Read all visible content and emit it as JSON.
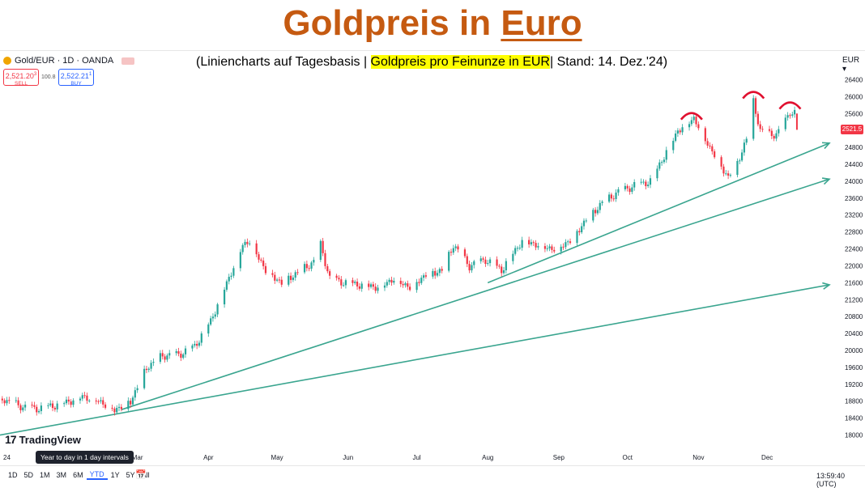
{
  "header": {
    "title_prefix": "Goldpreis in",
    "title_em": "Euro"
  },
  "subtitle": {
    "before": "(Liniencharts auf Tagesbasis |",
    "highlight": "Goldpreis pro Feinunze in EUR",
    "after": "| Stand: 14. Dez.'24)"
  },
  "symbol": {
    "label": "Gold/EUR · 1D · OANDA",
    "icon": "gold-coin-icon"
  },
  "trade": {
    "sell_price": "2,521.20",
    "sell_sup": "3",
    "sell_label": "SELL",
    "spread": "100.8",
    "buy_price": "2,522.21",
    "buy_sup": "1",
    "buy_label": "BUY"
  },
  "currency": "EUR",
  "last_price": "2521.5",
  "branding": {
    "logo_mark": "17",
    "logo_text": "TradingView"
  },
  "tooltip": "Year to day in 1 day intervals",
  "ranges": [
    "1D",
    "5D",
    "1M",
    "3M",
    "6M",
    "YTD",
    "1Y",
    "5Y",
    "All"
  ],
  "active_range": "YTD",
  "calendar_icon": "calendar-icon",
  "time": "13:59:40 (UTC)",
  "colors": {
    "up": "#26a69a",
    "down": "#f23645",
    "trend": "#3aa58f",
    "arc": "#e0102f",
    "title": "#c55a11",
    "highlight": "#ffff00"
  },
  "chart_data": {
    "type": "line",
    "title": "Goldpreis in Euro",
    "subtitle": "(Liniencharts auf Tagesbasis | Goldpreis pro Feinunze in EUR| Stand: 14. Dez.'24)",
    "xlabel": "",
    "ylabel": "",
    "yticks": [
      18000,
      18400,
      18800,
      19200,
      19600,
      20000,
      20400,
      20800,
      21200,
      21600,
      22000,
      22400,
      22800,
      23200,
      23600,
      24000,
      24400,
      24800,
      25200,
      25600,
      26000,
      26400
    ],
    "ytick_labels": [
      "18000",
      "18400",
      "18800",
      "19200",
      "19600",
      "20000",
      "20400",
      "20800",
      "21200",
      "21600",
      "22000",
      "22400",
      "22800",
      "23200",
      "23600",
      "24000",
      "24400",
      "24800",
      "25200",
      "25600",
      "26000",
      "26400"
    ],
    "ylim": [
      17800,
      26600
    ],
    "xticks": [
      {
        "date": "2024-01-01",
        "label": "24"
      },
      {
        "date": "2024-03-01",
        "label": "Mar"
      },
      {
        "date": "2024-04-01",
        "label": "Apr"
      },
      {
        "date": "2024-05-01",
        "label": "May"
      },
      {
        "date": "2024-06-01",
        "label": "Jun"
      },
      {
        "date": "2024-07-01",
        "label": "Jul"
      },
      {
        "date": "2024-08-01",
        "label": "Aug"
      },
      {
        "date": "2024-09-01",
        "label": "Sep"
      },
      {
        "date": "2024-10-01",
        "label": "Oct"
      },
      {
        "date": "2024-11-01",
        "label": "Nov"
      },
      {
        "date": "2024-12-01",
        "label": "Dec"
      }
    ],
    "xlim": [
      "2024-01-01",
      "2024-12-31"
    ],
    "series": [
      {
        "points": [
          [
            "2024-01-02",
            18860
          ],
          [
            "2024-01-09",
            18700
          ],
          [
            "2024-01-16",
            18620
          ],
          [
            "2024-01-23",
            18680
          ],
          [
            "2024-01-30",
            18780
          ],
          [
            "2024-02-06",
            18920
          ],
          [
            "2024-02-13",
            18820
          ],
          [
            "2024-02-20",
            18600
          ],
          [
            "2024-02-27",
            18800
          ],
          [
            "2024-03-05",
            19600
          ],
          [
            "2024-03-12",
            19880
          ],
          [
            "2024-03-19",
            19900
          ],
          [
            "2024-03-26",
            20100
          ],
          [
            "2024-04-02",
            20700
          ],
          [
            "2024-04-09",
            21600
          ],
          [
            "2024-04-16",
            22500
          ],
          [
            "2024-04-19",
            22600
          ],
          [
            "2024-04-26",
            21900
          ],
          [
            "2024-05-03",
            21600
          ],
          [
            "2024-05-10",
            21850
          ],
          [
            "2024-05-17",
            22100
          ],
          [
            "2024-05-20",
            22500
          ],
          [
            "2024-05-24",
            21700
          ],
          [
            "2024-05-31",
            21600
          ],
          [
            "2024-06-07",
            21550
          ],
          [
            "2024-06-14",
            21500
          ],
          [
            "2024-06-21",
            21700
          ],
          [
            "2024-06-28",
            21500
          ],
          [
            "2024-07-05",
            21800
          ],
          [
            "2024-07-12",
            21900
          ],
          [
            "2024-07-17",
            22500
          ],
          [
            "2024-07-24",
            22000
          ],
          [
            "2024-07-31",
            22150
          ],
          [
            "2024-08-07",
            21900
          ],
          [
            "2024-08-12",
            22300
          ],
          [
            "2024-08-16",
            22600
          ],
          [
            "2024-08-23",
            22500
          ],
          [
            "2024-08-30",
            22400
          ],
          [
            "2024-09-06",
            22600
          ],
          [
            "2024-09-13",
            23100
          ],
          [
            "2024-09-20",
            23500
          ],
          [
            "2024-09-27",
            23750
          ],
          [
            "2024-10-04",
            23900
          ],
          [
            "2024-10-11",
            24000
          ],
          [
            "2024-10-18",
            24700
          ],
          [
            "2024-10-23",
            25200
          ],
          [
            "2024-10-30",
            25500
          ],
          [
            "2024-11-06",
            24800
          ],
          [
            "2024-11-14",
            24100
          ],
          [
            "2024-11-18",
            24450
          ],
          [
            "2024-11-22",
            25000
          ],
          [
            "2024-11-25",
            25900
          ],
          [
            "2024-11-28",
            25200
          ],
          [
            "2024-12-03",
            25100
          ],
          [
            "2024-12-06",
            25150
          ],
          [
            "2024-12-11",
            25650
          ],
          [
            "2024-12-13",
            25600
          ],
          [
            "2024-12-14",
            25215
          ]
        ]
      }
    ],
    "trendlines": [
      {
        "from": [
          "2024-01-01",
          18000
        ],
        "to": [
          "2024-12-31",
          21550
        ]
      },
      {
        "from": [
          "2024-02-23",
          18600
        ],
        "to": [
          "2024-12-31",
          24050
        ]
      },
      {
        "from": [
          "2024-08-01",
          21600
        ],
        "to": [
          "2024-12-31",
          24900
        ]
      }
    ],
    "resistance_arcs": [
      {
        "date": "2024-10-29",
        "value": 25650
      },
      {
        "date": "2024-11-25",
        "value": 26150
      },
      {
        "date": "2024-12-11",
        "value": 25900
      }
    ],
    "last_value": 25215,
    "grid": false,
    "legend": "none"
  }
}
